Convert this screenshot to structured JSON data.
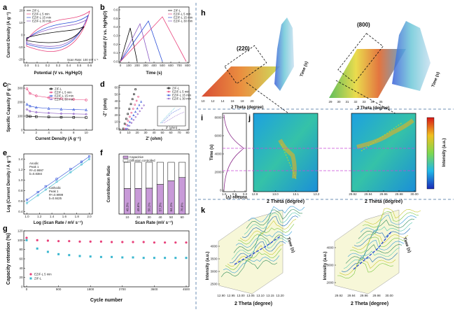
{
  "colors": {
    "zif_l": "#000000",
    "ezif5": "#e8407a",
    "ezif15": "#2b4fd8",
    "ezif30": "#8a59c4",
    "cyan": "#3ab7cf",
    "divider": "#6d8fb5"
  },
  "panels": {
    "a": {
      "label": "a",
      "xlabel": "Potential (V vs. Hg/HgO)",
      "ylabel": "Current Density (A g⁻¹)",
      "note": "Scan Rate: 100 mV s⁻¹",
      "xticks": [
        "0.0",
        "0.1",
        "0.2",
        "0.3",
        "0.4",
        "0.5",
        "0.6"
      ],
      "yticks": [
        "-20",
        "-10",
        "0",
        "10",
        "20"
      ],
      "legend": [
        "ZIF-L",
        "EZIF-L 5 min",
        "EZIF-L 15 min",
        "EZIF-L 30 min"
      ]
    },
    "b": {
      "label": "b",
      "xlabel": "Time (s)",
      "ylabel": "Potential (V vs. Hg/HgO)",
      "xticks": [
        "0",
        "100",
        "200",
        "300",
        "400",
        "500",
        "600",
        "700",
        "800"
      ],
      "yticks": [
        "0.0",
        "0.1",
        "0.2",
        "0.3",
        "0.4",
        "0.5",
        "0.6"
      ],
      "legend": [
        "ZIF-L",
        "EZIF-L 5 min",
        "EZIF-L 15 min",
        "EZIF-L 30 min"
      ]
    },
    "c": {
      "label": "c",
      "xlabel": "Current Density (A g⁻¹)",
      "ylabel": "Specific Capacity (F g⁻¹)",
      "xticks": [
        "0",
        "2",
        "4",
        "6",
        "8",
        "10"
      ],
      "yticks": [
        "0",
        "100",
        "200",
        "300"
      ],
      "legend": [
        "ZIF-L",
        "EZIF-L 5 min",
        "EZIF-L 15 min",
        "EZIF-L 30 min"
      ]
    },
    "d": {
      "label": "d",
      "xlabel": "Z' (ohm)",
      "ylabel": "-Z'' (ohm)",
      "xticks": [
        "0",
        "10",
        "20",
        "30",
        "40",
        "50",
        "60",
        "70",
        "80"
      ],
      "yticks": [
        "0",
        "10",
        "20",
        "30",
        "40",
        "50",
        "60"
      ],
      "legend": [
        "ZIF-L",
        "EZIF-L 5 min",
        "EZIF-L 15 min",
        "EZIF-L 30 min"
      ],
      "inset_xlabel": "Z' (ohm)"
    },
    "e": {
      "label": "e",
      "xlabel": "Log (Scan Rate / mV s⁻¹)",
      "ylabel": "Log (Current Density / A g⁻¹)",
      "xticks": [
        "1.0",
        "1.2",
        "1.4",
        "1.6",
        "1.8",
        "2.0"
      ],
      "yticks": [
        "0.4",
        "0.6",
        "0.8",
        "1.0",
        "1.2",
        "1.4"
      ],
      "anodic": [
        "Anodic",
        "Peak 1",
        "R²=0.9997",
        "b=0.8384"
      ],
      "cathodic": [
        "Cathodic",
        "Peak 1",
        "R²=0.9999",
        "b=0.8425"
      ]
    },
    "f": {
      "label": "f",
      "xlabel": "Scan Rate (mV s⁻¹)",
      "ylabel": "Contribution Ratio",
      "legend": [
        "Capacitive",
        "Diffusion controlled"
      ]
    },
    "g": {
      "label": "g",
      "xlabel": "Cycle number",
      "ylabel": "Capacity retention (%)",
      "xticks": [
        "0",
        "900",
        "1800",
        "2700",
        "3600",
        "4500"
      ],
      "yticks": [
        "0",
        "20",
        "40",
        "60",
        "80",
        "100",
        "120"
      ],
      "legend": [
        "EZIF-L 5 min",
        "ZIF-L"
      ]
    },
    "h": {
      "label": "h",
      "peak_left": "(220)",
      "peak_right": "(800)",
      "xlabel_left": "2 Theta (degree)",
      "xlabel_right": "2 Theta (degree)",
      "time_label": "Time (s)",
      "xticks_left": [
        "10",
        "12",
        "14",
        "16",
        "18",
        "20"
      ],
      "xticks_right": [
        "29",
        "30",
        "31",
        "32",
        "33",
        "34",
        "35"
      ]
    },
    "i": {
      "label": "i",
      "ylabel": "Time (s)",
      "xlabel": "Voltage (V)",
      "yticks": [
        "0",
        "2000",
        "4000",
        "6000",
        "8000"
      ],
      "xticks": [
        "1.0",
        "0.5",
        "0.0"
      ]
    },
    "j": {
      "label": "j",
      "xlabel_left": "2 Theta (degree)",
      "xlabel_right": "2 Theta (degree)",
      "xticks_left": [
        "12.9",
        "13.0",
        "13.1",
        "13.2"
      ],
      "xticks_right": [
        "29.92",
        "29.94",
        "29.96",
        "29.98",
        "30.00"
      ],
      "colorbar_label": "Intensity (a.u.)"
    },
    "k": {
      "label": "k",
      "xlabel_left": "2 Theta (degree)",
      "xlabel_right": "2 Theta (degree)",
      "ylabel": "Intensity (a.u.)",
      "time_label": "Time (s)",
      "xticks_left": [
        "12.90",
        "12.95",
        "13.00",
        "13.05",
        "13.10",
        "13.15",
        "13.20"
      ],
      "xticks_right": [
        "29.92",
        "29.94",
        "29.96",
        "29.98",
        "30.00"
      ],
      "yticks_left": [
        "2500",
        "3000",
        "3500",
        "4000"
      ],
      "yticks_right": [
        "2000",
        "3000",
        "4000"
      ]
    }
  },
  "chart_data": [
    {
      "panel": "c",
      "type": "line",
      "x": [
        0.5,
        1,
        2,
        4,
        6,
        8,
        10
      ],
      "series": [
        {
          "name": "ZIF-L",
          "values": [
            100,
            98,
            96,
            94,
            92,
            91,
            90
          ]
        },
        {
          "name": "EZIF-L 5 min",
          "values": [
            295,
            262,
            245,
            232,
            225,
            220,
            215
          ]
        },
        {
          "name": "EZIF-L 15 min",
          "values": [
            185,
            172,
            162,
            155,
            150,
            147,
            145
          ]
        },
        {
          "name": "EZIF-L 30 min",
          "values": [
            148,
            135,
            128,
            122,
            118,
            116,
            114
          ]
        }
      ],
      "xlim": [
        0,
        11
      ],
      "ylim": [
        0,
        320
      ]
    },
    {
      "panel": "e",
      "type": "scatter",
      "series": [
        {
          "name": "Anodic Peak 1",
          "x": [
            1.0,
            1.176,
            1.301,
            1.477,
            1.699,
            1.875,
            2.0
          ],
          "values": [
            0.62,
            0.77,
            0.88,
            1.02,
            1.21,
            1.35,
            1.45
          ]
        },
        {
          "name": "Cathodic Peak 1",
          "x": [
            1.0,
            1.176,
            1.301,
            1.477,
            1.699,
            1.875,
            2.0
          ],
          "values": [
            0.56,
            0.71,
            0.82,
            0.97,
            1.15,
            1.3,
            1.4
          ]
        }
      ],
      "xlim": [
        0.95,
        2.05
      ],
      "ylim": [
        0.35,
        1.5
      ]
    },
    {
      "panel": "f",
      "type": "bar",
      "categories": [
        "10",
        "20",
        "30",
        "40",
        "50",
        "60"
      ],
      "series": [
        {
          "name": "Capacitive",
          "values": [
            49.3,
            49.6,
            50.1,
            57.3,
            64.1,
            70.6
          ]
        },
        {
          "name": "Diffusion controlled",
          "values": [
            50.7,
            50.4,
            49.9,
            42.7,
            35.9,
            29.4
          ]
        }
      ],
      "labels": [
        "49.3%",
        "49.6%",
        "50.1%",
        "57.3%",
        "64.1%",
        "70.6%"
      ],
      "ylim": [
        0,
        100
      ]
    },
    {
      "panel": "g",
      "type": "scatter",
      "x": [
        0,
        300,
        600,
        900,
        1200,
        1500,
        1800,
        2100,
        2400,
        2700,
        3000,
        3300,
        3600,
        3900,
        4200,
        4500
      ],
      "series": [
        {
          "name": "EZIF-L 5 min",
          "values": [
            105,
            100,
            99,
            98,
            98,
            97,
            97,
            97,
            96,
            96,
            96,
            96,
            95,
            95,
            95,
            95
          ]
        },
        {
          "name": "ZIF-L",
          "values": [
            100,
            82,
            75,
            70,
            68,
            66,
            65,
            64,
            64,
            63,
            63,
            62,
            62,
            62,
            62,
            62
          ]
        }
      ],
      "xlim": [
        0,
        4500
      ],
      "ylim": [
        0,
        120
      ]
    }
  ]
}
